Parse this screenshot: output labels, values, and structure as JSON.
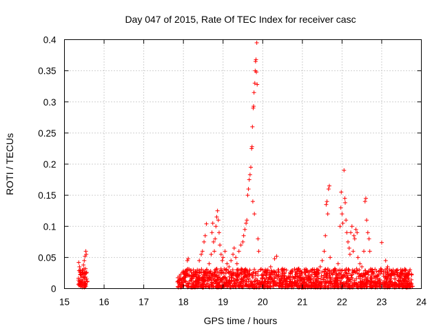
{
  "chart_data": {
    "type": "scatter",
    "title": "Day 047 of 2015, Rate Of TEC Index for receiver casc",
    "xlabel": "GPS time / hours",
    "ylabel": "ROTI / TECUs",
    "xlim": [
      15,
      24
    ],
    "ylim": [
      0,
      0.4
    ],
    "xticks": [
      15,
      16,
      17,
      18,
      19,
      20,
      21,
      22,
      23,
      24
    ],
    "yticks": [
      0,
      0.05,
      0.1,
      0.15,
      0.2,
      0.25,
      0.3,
      0.35,
      0.4
    ],
    "ytick_labels": [
      "0",
      "0.05",
      "0.1",
      "0.15",
      "0.2",
      "0.25",
      "0.3",
      "0.35",
      "0.4"
    ],
    "grid": true,
    "marker": "+",
    "color": "#ff0000",
    "series": [
      {
        "name": "ROTI",
        "points": [
          [
            15.36,
            0.042
          ],
          [
            15.38,
            0.035
          ],
          [
            15.4,
            0.03
          ],
          [
            15.42,
            0.022
          ],
          [
            15.44,
            0.018
          ],
          [
            15.46,
            0.012
          ],
          [
            15.48,
            0.038
          ],
          [
            15.5,
            0.045
          ],
          [
            15.52,
            0.052
          ],
          [
            15.54,
            0.06
          ],
          [
            15.55,
            0.055
          ],
          [
            15.37,
            0.008
          ],
          [
            15.41,
            0.01
          ],
          [
            15.45,
            0.006
          ],
          [
            15.5,
            0.015
          ],
          [
            15.53,
            0.025
          ],
          [
            18.0,
            0.01
          ],
          [
            18.05,
            0.02
          ],
          [
            18.08,
            0.03
          ],
          [
            18.1,
            0.045
          ],
          [
            18.12,
            0.048
          ],
          [
            18.2,
            0.015
          ],
          [
            18.25,
            0.025
          ],
          [
            18.3,
            0.012
          ],
          [
            18.35,
            0.03
          ],
          [
            18.4,
            0.045
          ],
          [
            18.45,
            0.055
          ],
          [
            18.48,
            0.06
          ],
          [
            18.52,
            0.075
          ],
          [
            18.55,
            0.085
          ],
          [
            18.58,
            0.104
          ],
          [
            18.65,
            0.04
          ],
          [
            18.7,
            0.055
          ],
          [
            18.72,
            0.09
          ],
          [
            18.74,
            0.105
          ],
          [
            18.76,
            0.075
          ],
          [
            18.78,
            0.06
          ],
          [
            18.8,
            0.08
          ],
          [
            18.82,
            0.1
          ],
          [
            18.84,
            0.115
          ],
          [
            18.86,
            0.125
          ],
          [
            18.88,
            0.11
          ],
          [
            18.9,
            0.09
          ],
          [
            18.92,
            0.07
          ],
          [
            18.95,
            0.055
          ],
          [
            18.98,
            0.045
          ],
          [
            19.0,
            0.05
          ],
          [
            19.05,
            0.06
          ],
          [
            19.1,
            0.04
          ],
          [
            19.15,
            0.035
          ],
          [
            19.2,
            0.045
          ],
          [
            19.25,
            0.055
          ],
          [
            19.28,
            0.065
          ],
          [
            19.32,
            0.05
          ],
          [
            19.35,
            0.04
          ],
          [
            19.4,
            0.06
          ],
          [
            19.45,
            0.07
          ],
          [
            19.5,
            0.075
          ],
          [
            19.52,
            0.085
          ],
          [
            19.55,
            0.095
          ],
          [
            19.58,
            0.105
          ],
          [
            19.6,
            0.11
          ],
          [
            19.62,
            0.15
          ],
          [
            19.64,
            0.16
          ],
          [
            19.66,
            0.175
          ],
          [
            19.68,
            0.183
          ],
          [
            19.7,
            0.195
          ],
          [
            19.72,
            0.225
          ],
          [
            19.73,
            0.228
          ],
          [
            19.74,
            0.26
          ],
          [
            19.76,
            0.29
          ],
          [
            19.77,
            0.293
          ],
          [
            19.78,
            0.315
          ],
          [
            19.8,
            0.33
          ],
          [
            19.81,
            0.35
          ],
          [
            19.82,
            0.365
          ],
          [
            19.83,
            0.368
          ],
          [
            19.85,
            0.395
          ],
          [
            19.86,
            0.328
          ],
          [
            19.84,
            0.348
          ],
          [
            19.75,
            0.14
          ],
          [
            19.79,
            0.12
          ],
          [
            19.88,
            0.08
          ],
          [
            19.9,
            0.06
          ],
          [
            20.0,
            0.03
          ],
          [
            20.1,
            0.025
          ],
          [
            20.2,
            0.035
          ],
          [
            20.3,
            0.048
          ],
          [
            20.35,
            0.052
          ],
          [
            20.4,
            0.03
          ],
          [
            20.5,
            0.02
          ],
          [
            20.6,
            0.015
          ],
          [
            20.7,
            0.012
          ],
          [
            20.8,
            0.01
          ],
          [
            20.9,
            0.015
          ],
          [
            21.0,
            0.012
          ],
          [
            21.1,
            0.018
          ],
          [
            21.2,
            0.015
          ],
          [
            21.3,
            0.025
          ],
          [
            21.4,
            0.03
          ],
          [
            21.45,
            0.035
          ],
          [
            21.5,
            0.045
          ],
          [
            21.55,
            0.06
          ],
          [
            21.58,
            0.085
          ],
          [
            21.6,
            0.135
          ],
          [
            21.62,
            0.14
          ],
          [
            21.64,
            0.12
          ],
          [
            21.66,
            0.16
          ],
          [
            21.68,
            0.165
          ],
          [
            21.7,
            0.05
          ],
          [
            21.8,
            0.03
          ],
          [
            21.9,
            0.04
          ],
          [
            21.95,
            0.1
          ],
          [
            21.97,
            0.13
          ],
          [
            21.98,
            0.155
          ],
          [
            22.0,
            0.12
          ],
          [
            22.02,
            0.105
          ],
          [
            22.05,
            0.19
          ],
          [
            22.07,
            0.145
          ],
          [
            22.08,
            0.138
          ],
          [
            22.1,
            0.11
          ],
          [
            22.12,
            0.09
          ],
          [
            22.15,
            0.075
          ],
          [
            22.18,
            0.065
          ],
          [
            22.2,
            0.055
          ],
          [
            22.22,
            0.09
          ],
          [
            22.25,
            0.1
          ],
          [
            22.28,
            0.06
          ],
          [
            22.3,
            0.085
          ],
          [
            22.32,
            0.08
          ],
          [
            22.35,
            0.095
          ],
          [
            22.38,
            0.09
          ],
          [
            22.4,
            0.05
          ],
          [
            22.45,
            0.04
          ],
          [
            22.5,
            0.035
          ],
          [
            22.55,
            0.06
          ],
          [
            22.58,
            0.14
          ],
          [
            22.6,
            0.145
          ],
          [
            22.62,
            0.11
          ],
          [
            22.65,
            0.09
          ],
          [
            22.68,
            0.08
          ],
          [
            22.7,
            0.06
          ],
          [
            22.75,
            0.03
          ],
          [
            22.8,
            0.025
          ],
          [
            22.9,
            0.02
          ],
          [
            23.0,
            0.074
          ],
          [
            23.1,
            0.045
          ],
          [
            23.15,
            0.035
          ],
          [
            23.2,
            0.03
          ],
          [
            23.3,
            0.025
          ],
          [
            23.4,
            0.03
          ],
          [
            23.5,
            0.025
          ],
          [
            23.6,
            0.02
          ],
          [
            23.7,
            0.028
          ],
          [
            23.75,
            0.022
          ]
        ]
      }
    ],
    "baseline": {
      "ranges": [
        [
          15.35,
          15.58
        ],
        [
          17.85,
          23.78
        ]
      ],
      "typical_max": 0.03
    }
  }
}
